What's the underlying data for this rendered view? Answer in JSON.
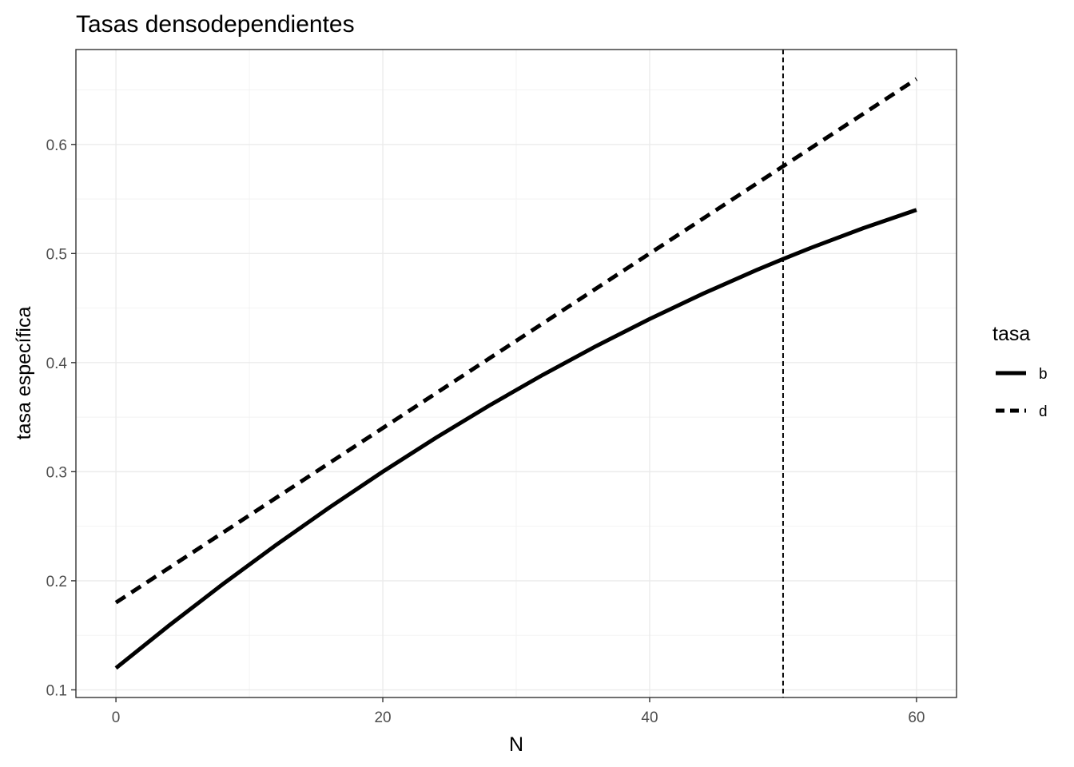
{
  "chart_data": {
    "type": "line",
    "title": "Tasas densodependientes",
    "xlabel": "N",
    "ylabel": "tasa específica",
    "xlim": [
      -3,
      63
    ],
    "ylim": [
      0.093,
      0.687
    ],
    "x_ticks": [
      0,
      20,
      40,
      60
    ],
    "x_tick_labels": [
      "0",
      "20",
      "40",
      "60"
    ],
    "y_ticks": [
      0.1,
      0.2,
      0.3,
      0.4,
      0.5,
      0.6
    ],
    "y_tick_labels": [
      "0.1",
      "0.2",
      "0.3",
      "0.4",
      "0.5",
      "0.6"
    ],
    "grid": true,
    "legend": {
      "title": "tasa",
      "position": "right",
      "entries": [
        {
          "label": "b",
          "linetype": "solid"
        },
        {
          "label": "d",
          "linetype": "dashed"
        }
      ]
    },
    "x": [
      0,
      4,
      8,
      12,
      16,
      20,
      24,
      28,
      32,
      36,
      40,
      44,
      48,
      50,
      52,
      56,
      60
    ],
    "series": [
      {
        "name": "b",
        "linetype": "solid",
        "values": [
          0.12,
          0.1592,
          0.1968,
          0.2328,
          0.2672,
          0.3,
          0.3312,
          0.3608,
          0.3888,
          0.4152,
          0.44,
          0.4632,
          0.4848,
          0.495,
          0.5048,
          0.5232,
          0.54
        ]
      },
      {
        "name": "d",
        "linetype": "dashed",
        "values": [
          0.18,
          0.212,
          0.244,
          0.276,
          0.308,
          0.34,
          0.372,
          0.404,
          0.436,
          0.468,
          0.5,
          0.532,
          0.564,
          0.58,
          0.596,
          0.628,
          0.66
        ]
      }
    ],
    "vline": {
      "x": 50,
      "linetype": "dashed"
    },
    "colors": {
      "line": "#000000",
      "grid": "#ebebeb",
      "border": "#333333"
    }
  }
}
